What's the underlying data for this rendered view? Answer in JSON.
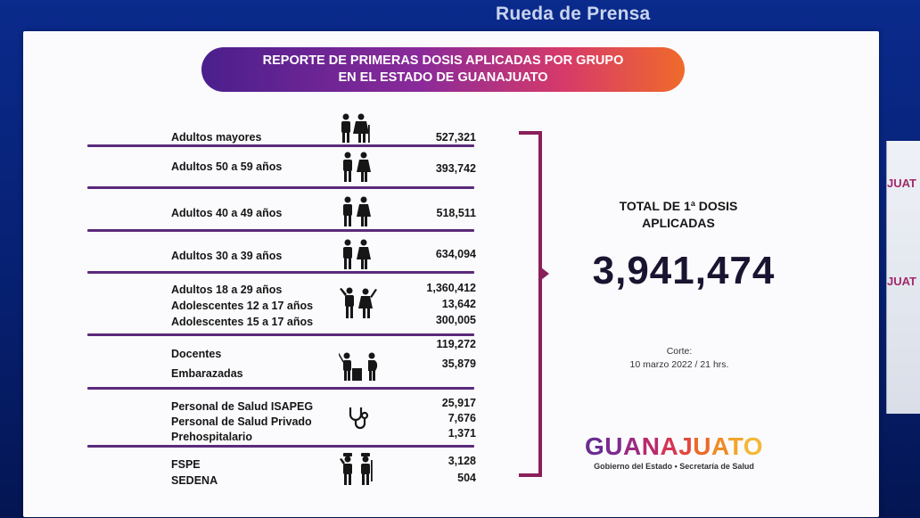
{
  "header": {
    "title": "Rueda de Prensa"
  },
  "banner": {
    "line1": "REPORTE DE PRIMERAS DOSIS  APLICADAS POR GRUPO",
    "line2": "EN EL ESTADO DE GUANAJUATO"
  },
  "groups": [
    {
      "labels": [
        "Adultos mayores"
      ],
      "values": [
        "527,321"
      ],
      "icon": "elderly-couple-icon"
    },
    {
      "labels": [
        "Adultos 50 a 59 años"
      ],
      "values": [
        "393,742"
      ],
      "icon": "adult-couple-icon"
    },
    {
      "labels": [
        "Adultos 40 a 49 años"
      ],
      "values": [
        "518,511"
      ],
      "icon": "adult-couple-icon"
    },
    {
      "labels": [
        "Adultos 30 a 39 años"
      ],
      "values": [
        "634,094"
      ],
      "icon": "adult-couple-icon"
    },
    {
      "labels": [
        "Adultos 18 a 29 años",
        "Adolescentes 12 a 17 años",
        "Adolescentes 15 a 17 años"
      ],
      "values": [
        "1,360,412",
        "13,642",
        "300,005"
      ],
      "icon": "young-people-icon"
    },
    {
      "labels": [
        "Docentes",
        "Embarazadas"
      ],
      "values": [
        "119,272",
        "35,879"
      ],
      "icon": "teacher-pregnant-icon"
    },
    {
      "labels": [
        "Personal de Salud ISAPEG",
        "Personal de Salud Privado",
        "Prehospitalario"
      ],
      "values": [
        "25,917",
        "7,676",
        "1,371"
      ],
      "icon": "stethoscope-icon"
    },
    {
      "labels": [
        "FSPE",
        "SEDENA"
      ],
      "values": [
        "3,128",
        "504"
      ],
      "icon": "soldiers-icon"
    }
  ],
  "total": {
    "label_line1": "TOTAL DE 1ª DOSIS",
    "label_line2": "APLICADAS",
    "value": "3,941,474"
  },
  "corte": {
    "line1": "Corte:",
    "line2": "10 marzo  2022 / 21 hrs."
  },
  "logo": {
    "word": "GUANAJUATO",
    "subtitle": "Gobierno del Estado • Secretaría de Salud"
  },
  "side_panel": {
    "text1": "JUAT",
    "text2": "JUAT"
  },
  "colors": {
    "separator": "#5a2a7a",
    "bracket": "#8a1f5a",
    "background": "#0a2a8c"
  }
}
